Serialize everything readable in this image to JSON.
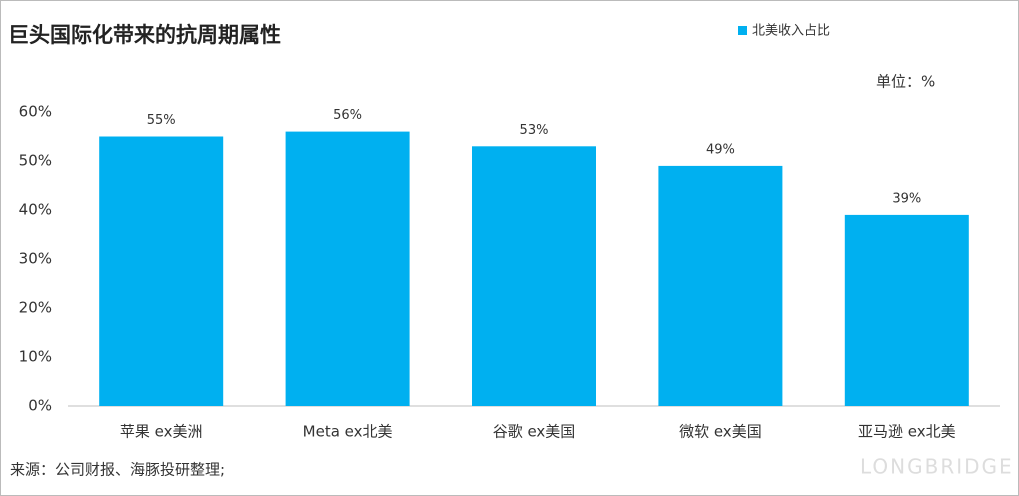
{
  "chart_data": {
    "type": "bar",
    "title": "巨头国际化带来的抗周期属性",
    "legend": "北美收入占比",
    "unit_label": "单位：%",
    "source": "来源：公司财报、海豚投研整理;",
    "watermark": "LONGBRIDGE",
    "categories": [
      "苹果 ex美洲",
      "Meta ex北美",
      "谷歌 ex美国",
      "微软 ex美国",
      "亚马逊 ex北美"
    ],
    "values": [
      55,
      56,
      53,
      49,
      39
    ],
    "value_labels": [
      "55%",
      "56%",
      "53%",
      "49%",
      "39%"
    ],
    "color": "#00b0f0",
    "ylim": [
      0,
      60
    ],
    "yticks": [
      {
        "value": 0,
        "label": "0%"
      },
      {
        "value": 10,
        "label": "10%"
      },
      {
        "value": 20,
        "label": "20%"
      },
      {
        "value": 30,
        "label": "30%"
      },
      {
        "value": 40,
        "label": "40%"
      },
      {
        "value": 50,
        "label": "50%"
      },
      {
        "value": 60,
        "label": "60%"
      }
    ],
    "grid": false
  }
}
